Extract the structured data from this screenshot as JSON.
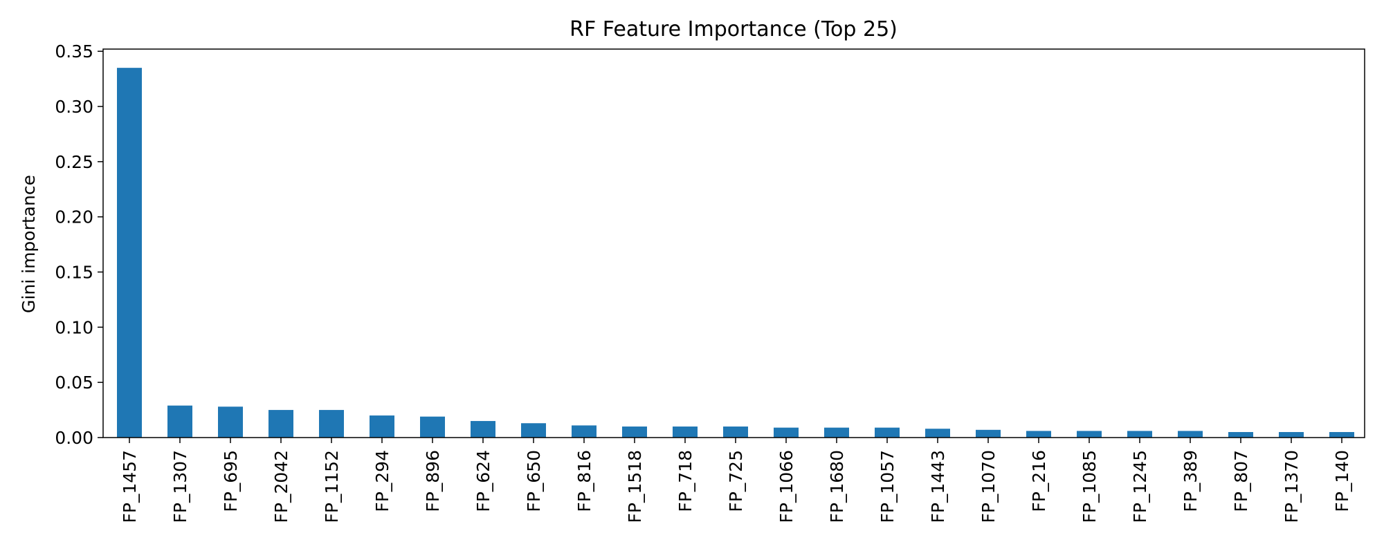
{
  "chart_data": {
    "type": "bar",
    "title": "RF Feature Importance (Top 25)",
    "xlabel": "",
    "ylabel": "Gini importance",
    "ylim": [
      0,
      0.352
    ],
    "yticks": [
      0.0,
      0.05,
      0.1,
      0.15,
      0.2,
      0.25,
      0.3,
      0.35
    ],
    "ytick_labels": [
      "0.00",
      "0.05",
      "0.10",
      "0.15",
      "0.20",
      "0.25",
      "0.30",
      "0.35"
    ],
    "grid": false,
    "legend": false,
    "bar_color": "#1f77b4",
    "categories": [
      "FP_1457",
      "FP_1307",
      "FP_695",
      "FP_2042",
      "FP_1152",
      "FP_294",
      "FP_896",
      "FP_624",
      "FP_650",
      "FP_816",
      "FP_1518",
      "FP_718",
      "FP_725",
      "FP_1066",
      "FP_1680",
      "FP_1057",
      "FP_1443",
      "FP_1070",
      "FP_216",
      "FP_1085",
      "FP_1245",
      "FP_389",
      "FP_807",
      "FP_1370",
      "FP_140"
    ],
    "values": [
      0.335,
      0.029,
      0.028,
      0.025,
      0.025,
      0.02,
      0.019,
      0.015,
      0.013,
      0.011,
      0.01,
      0.01,
      0.01,
      0.009,
      0.009,
      0.009,
      0.008,
      0.007,
      0.006,
      0.006,
      0.006,
      0.006,
      0.005,
      0.005,
      0.005
    ]
  }
}
